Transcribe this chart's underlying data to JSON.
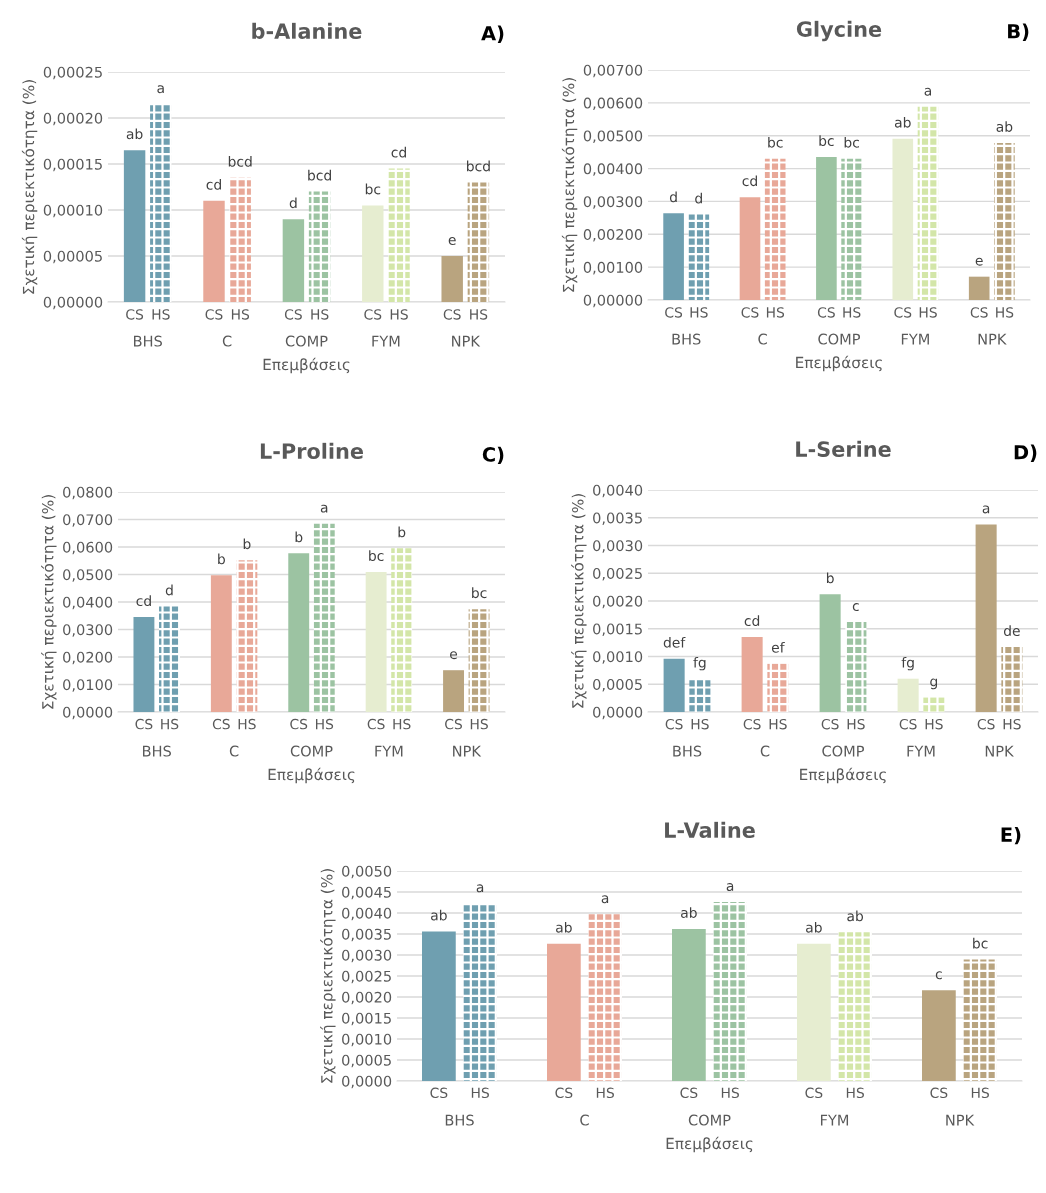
{
  "chart_data": [
    {
      "type": "bar",
      "title": "b-Alanine",
      "ylabel": "Σχετική περιεκτικότητα (%)",
      "xlabel": "Επεμβάσεις",
      "annotations": [
        "A)"
      ],
      "categories": [
        "BHS",
        "C",
        "COMP",
        "FYM",
        "NPK"
      ],
      "series": [
        {
          "name": "CS",
          "colors": [
            "#6f9fb0",
            "#e8a898",
            "#9cc3a2",
            "#e6edd0",
            "#b9a47f"
          ],
          "values": [
            0.000165,
            0.00011,
            9e-05,
            0.000105,
            5e-05
          ],
          "value_labels": [
            "ab",
            "cd",
            "d",
            "bc",
            "e"
          ]
        },
        {
          "name": "HS",
          "colors": [
            "#6f9fb0",
            "#e8a898",
            "#9cc3a2",
            "#d3e6a8",
            "#b9a47f"
          ],
          "values": [
            0.000215,
            0.000135,
            0.00012,
            0.000145,
            0.00013
          ],
          "value_labels": [
            "a",
            "bcd",
            "bcd",
            "cd",
            "bcd"
          ]
        }
      ],
      "ylim": [
        0,
        0.00025
      ],
      "yticks": [
        {
          "value": 0,
          "label": "0,00000"
        },
        {
          "value": 5e-05,
          "label": "0,00005"
        },
        {
          "value": 0.0001,
          "label": "0,00010"
        },
        {
          "value": 0.00015,
          "label": "0,00015"
        },
        {
          "value": 0.0002,
          "label": "0,00020"
        },
        {
          "value": 0.00025,
          "label": "0,00025"
        }
      ],
      "grid": "y",
      "legend": false
    },
    {
      "type": "bar",
      "title": "Glycine",
      "ylabel": "Σχετική περιεκτικότητα (%)",
      "xlabel": "Επεμβάσεις",
      "annotations": [
        "B)"
      ],
      "categories": [
        "BHS",
        "C",
        "COMP",
        "FYM",
        "NPK"
      ],
      "series": [
        {
          "name": "CS",
          "colors": [
            "#6f9fb0",
            "#e8a898",
            "#9cc3a2",
            "#e6edd0",
            "#b9a47f"
          ],
          "values": [
            0.00264,
            0.00313,
            0.00435,
            0.00491,
            0.00071
          ],
          "value_labels": [
            "d",
            "cd",
            "bc",
            "ab",
            "e"
          ]
        },
        {
          "name": "HS",
          "colors": [
            "#6f9fb0",
            "#e8a898",
            "#9cc3a2",
            "#d3e6a8",
            "#b9a47f"
          ],
          "values": [
            0.0026,
            0.0043,
            0.0043,
            0.00588,
            0.00478
          ],
          "value_labels": [
            "d",
            "bc",
            "bc",
            "a",
            "ab"
          ]
        }
      ],
      "ylim": [
        0,
        0.007
      ],
      "yticks": [
        {
          "value": 0,
          "label": "0,00000"
        },
        {
          "value": 0.001,
          "label": "0,00100"
        },
        {
          "value": 0.002,
          "label": "0,00200"
        },
        {
          "value": 0.003,
          "label": "0,00300"
        },
        {
          "value": 0.004,
          "label": "0,00400"
        },
        {
          "value": 0.005,
          "label": "0,00500"
        },
        {
          "value": 0.006,
          "label": "0,00600"
        },
        {
          "value": 0.007,
          "label": "0,00700"
        }
      ],
      "grid": "y",
      "legend": false
    },
    {
      "type": "bar",
      "title": "L-Proline",
      "ylabel": "Σχετική περιεκτικότητα (%)",
      "xlabel": "Επεμβάσεις",
      "annotations": [
        "C)"
      ],
      "categories": [
        "BHS",
        "C",
        "COMP",
        "FYM",
        "NPK"
      ],
      "series": [
        {
          "name": "CS",
          "colors": [
            "#6f9fb0",
            "#e8a898",
            "#9cc3a2",
            "#e6edd0",
            "#b9a47f"
          ],
          "values": [
            0.0345,
            0.0497,
            0.0577,
            0.0509,
            0.0152
          ],
          "value_labels": [
            "cd",
            "b",
            "b",
            "bc",
            "e"
          ]
        },
        {
          "name": "HS",
          "colors": [
            "#6f9fb0",
            "#e8a898",
            "#9cc3a2",
            "#d3e6a8",
            "#b9a47f"
          ],
          "values": [
            0.0384,
            0.0552,
            0.0685,
            0.0595,
            0.0374
          ],
          "value_labels": [
            "d",
            "b",
            "a",
            "b",
            "bc"
          ]
        }
      ],
      "ylim": [
        0,
        0.08
      ],
      "yticks": [
        {
          "value": 0,
          "label": "0,0000"
        },
        {
          "value": 0.01,
          "label": "0,0100"
        },
        {
          "value": 0.02,
          "label": "0,0200"
        },
        {
          "value": 0.03,
          "label": "0,0300"
        },
        {
          "value": 0.04,
          "label": "0,0400"
        },
        {
          "value": 0.05,
          "label": "0,0500"
        },
        {
          "value": 0.06,
          "label": "0,0600"
        },
        {
          "value": 0.07,
          "label": "0,0700"
        },
        {
          "value": 0.08,
          "label": "0,0800"
        }
      ],
      "grid": "y",
      "legend": false
    },
    {
      "type": "bar",
      "title": "L-Serine",
      "ylabel": "Σχετική περιεκτικότητα (%)",
      "xlabel": "Επεμβάσεις",
      "annotations": [
        "D)"
      ],
      "categories": [
        "BHS",
        "C",
        "COMP",
        "FYM",
        "NPK"
      ],
      "series": [
        {
          "name": "CS",
          "colors": [
            "#6f9fb0",
            "#e8a898",
            "#9cc3a2",
            "#e6edd0",
            "#b9a47f"
          ],
          "values": [
            0.00096,
            0.00135,
            0.00212,
            0.0006,
            0.00338
          ],
          "value_labels": [
            "def",
            "cd",
            "b",
            "fg",
            "a"
          ]
        },
        {
          "name": "HS",
          "colors": [
            "#6f9fb0",
            "#e8a898",
            "#9cc3a2",
            "#d3e6a8",
            "#b9a47f"
          ],
          "values": [
            0.0006,
            0.00087,
            0.00162,
            0.00026,
            0.00117
          ],
          "value_labels": [
            "fg",
            "ef",
            "c",
            "g",
            "de"
          ]
        }
      ],
      "ylim": [
        0,
        0.004
      ],
      "yticks": [
        {
          "value": 0,
          "label": "0,0000"
        },
        {
          "value": 0.0005,
          "label": "0,0005"
        },
        {
          "value": 0.001,
          "label": "0,0010"
        },
        {
          "value": 0.0015,
          "label": "0,0015"
        },
        {
          "value": 0.002,
          "label": "0,0020"
        },
        {
          "value": 0.0025,
          "label": "0,0025"
        },
        {
          "value": 0.003,
          "label": "0,0030"
        },
        {
          "value": 0.0035,
          "label": "0,0035"
        },
        {
          "value": 0.004,
          "label": "0,0040"
        }
      ],
      "grid": "y",
      "legend": false
    },
    {
      "type": "bar",
      "title": "L-Valine",
      "ylabel": "Σχετική περιεκτικότητα (%)",
      "xlabel": "Επεμβάσεις",
      "annotations": [
        "E)"
      ],
      "categories": [
        "BHS",
        "C",
        "COMP",
        "FYM",
        "NPK"
      ],
      "series": [
        {
          "name": "CS",
          "colors": [
            "#6f9fb0",
            "#e8a898",
            "#9cc3a2",
            "#e6edd0",
            "#b9a47f"
          ],
          "values": [
            0.00356,
            0.00327,
            0.00362,
            0.00327,
            0.00216
          ],
          "value_labels": [
            "ab",
            "ab",
            "ab",
            "ab",
            "c"
          ]
        },
        {
          "name": "HS",
          "colors": [
            "#6f9fb0",
            "#e8a898",
            "#9cc3a2",
            "#d3e6a8",
            "#b9a47f"
          ],
          "values": [
            0.00423,
            0.00397,
            0.00426,
            0.00354,
            0.00289
          ],
          "value_labels": [
            "a",
            "a",
            "a",
            "ab",
            "bc"
          ]
        }
      ],
      "ylim": [
        0,
        0.005
      ],
      "yticks": [
        {
          "value": 0,
          "label": "0,0000"
        },
        {
          "value": 0.0005,
          "label": "0,0005"
        },
        {
          "value": 0.001,
          "label": "0,0010"
        },
        {
          "value": 0.0015,
          "label": "0,0015"
        },
        {
          "value": 0.002,
          "label": "0,0020"
        },
        {
          "value": 0.0025,
          "label": "0,0025"
        },
        {
          "value": 0.003,
          "label": "0,0030"
        },
        {
          "value": 0.0035,
          "label": "0,0035"
        },
        {
          "value": 0.004,
          "label": "0,0040"
        },
        {
          "value": 0.0045,
          "label": "0,0045"
        },
        {
          "value": 0.005,
          "label": "0,0050"
        }
      ],
      "grid": "y",
      "legend": false
    }
  ]
}
